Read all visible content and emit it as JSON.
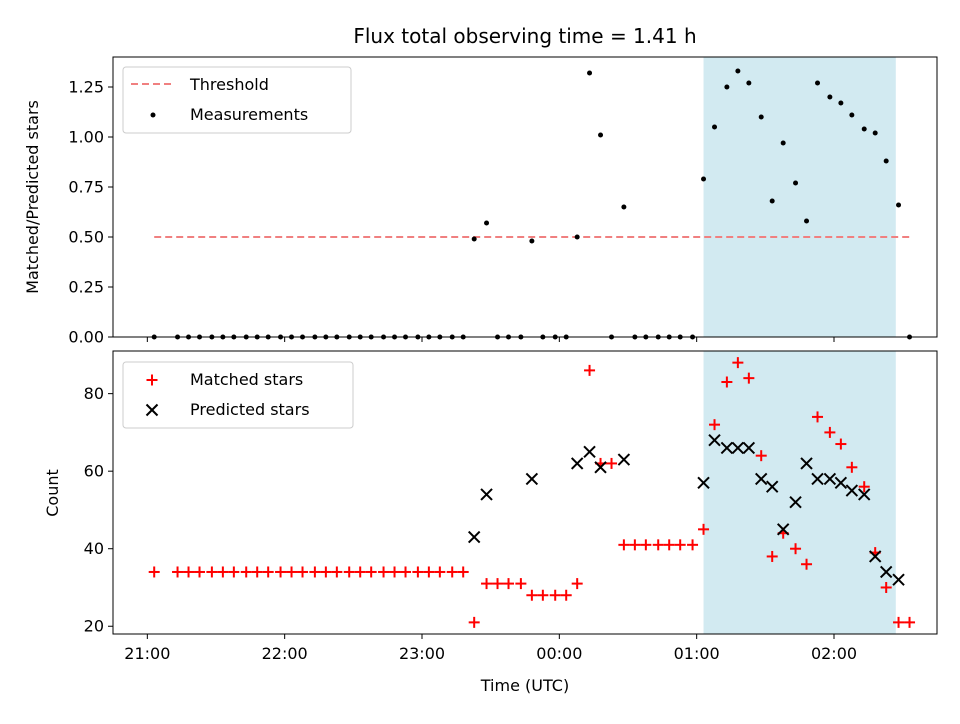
{
  "title": "Flux total observing time = 1.41 h",
  "xlabel": "Time (UTC)",
  "x_tick_labels": [
    "21:00",
    "22:00",
    "23:00",
    "00:00",
    "01:00",
    "02:00"
  ],
  "colors": {
    "threshold": "#f08080",
    "measurement": "#000000",
    "matched": "#ff0000",
    "predicted": "#000000",
    "span": "#add8e6"
  },
  "chart_data": [
    {
      "type": "scatter",
      "panel": "top",
      "ylabel": "Matched/Predicted stars",
      "ylim": [
        0,
        1.4
      ],
      "y_tick_labels": [
        "0.00",
        "0.25",
        "0.50",
        "0.75",
        "1.00",
        "1.25"
      ],
      "x_unit": "hours since 21:00 UTC",
      "xlim": [
        -0.25,
        5.75
      ],
      "shaded_span": [
        4.05,
        5.45
      ],
      "threshold": {
        "name": "Threshold",
        "y": 0.5,
        "x_range": [
          0.05,
          5.55
        ]
      },
      "series": [
        {
          "name": "Measurements",
          "x": [
            0.05,
            0.22,
            0.3,
            0.38,
            0.47,
            0.55,
            0.63,
            0.72,
            0.8,
            0.88,
            0.97,
            1.05,
            1.13,
            1.22,
            1.3,
            1.38,
            1.47,
            1.55,
            1.63,
            1.72,
            1.8,
            1.88,
            1.97,
            2.05,
            2.13,
            2.22,
            2.3,
            2.38,
            2.47,
            2.55,
            2.63,
            2.72,
            2.8,
            2.88,
            2.97,
            3.05,
            3.13,
            3.22,
            3.3,
            3.38,
            3.47,
            3.55,
            3.63,
            3.72,
            3.8,
            3.88,
            3.97,
            4.05,
            4.13,
            4.22,
            4.3,
            4.38,
            4.47,
            4.55,
            4.63,
            4.72,
            4.8,
            4.88,
            4.97,
            5.05,
            5.13,
            5.22,
            5.3,
            5.38,
            5.47,
            5.55
          ],
          "y": [
            0,
            0,
            0,
            0,
            0,
            0,
            0,
            0,
            0,
            0,
            0,
            0,
            0,
            0,
            0,
            0,
            0,
            0,
            0,
            0,
            0,
            0,
            0,
            0,
            0,
            0,
            0,
            0.49,
            0.57,
            0,
            0,
            0,
            0.48,
            0,
            0,
            0,
            0.5,
            1.32,
            1.01,
            0,
            0.65,
            0,
            0,
            0,
            0,
            0,
            0,
            0.79,
            1.05,
            1.25,
            1.33,
            1.27,
            1.1,
            0.68,
            0.97,
            0.77,
            0.58,
            1.27,
            1.2,
            1.17,
            1.11,
            1.04,
            1.02,
            0.88,
            0.66,
            0
          ]
        }
      ]
    },
    {
      "type": "scatter",
      "panel": "bottom",
      "ylabel": "Count",
      "ylim": [
        18,
        91
      ],
      "y_tick_labels": [
        "20",
        "40",
        "60",
        "80"
      ],
      "x_unit": "hours since 21:00 UTC",
      "xlim": [
        -0.25,
        5.75
      ],
      "shaded_span": [
        4.05,
        5.45
      ],
      "series": [
        {
          "name": "Matched stars",
          "x": [
            0.05,
            0.22,
            0.3,
            0.38,
            0.47,
            0.55,
            0.63,
            0.72,
            0.8,
            0.88,
            0.97,
            1.05,
            1.13,
            1.22,
            1.3,
            1.38,
            1.47,
            1.55,
            1.63,
            1.72,
            1.8,
            1.88,
            1.97,
            2.05,
            2.13,
            2.22,
            2.3,
            2.38,
            2.47,
            2.55,
            2.63,
            2.72,
            2.8,
            2.88,
            2.97,
            3.05,
            3.13,
            3.22,
            3.3,
            3.38,
            3.47,
            3.55,
            3.63,
            3.72,
            3.8,
            3.88,
            3.97,
            4.05,
            4.13,
            4.22,
            4.3,
            4.38,
            4.47,
            4.55,
            4.63,
            4.72,
            4.8,
            4.88,
            4.97,
            5.05,
            5.13,
            5.22,
            5.3,
            5.38,
            5.47,
            5.55
          ],
          "y": [
            34,
            34,
            34,
            34,
            34,
            34,
            34,
            34,
            34,
            34,
            34,
            34,
            34,
            34,
            34,
            34,
            34,
            34,
            34,
            34,
            34,
            34,
            34,
            34,
            34,
            34,
            34,
            21,
            31,
            31,
            31,
            31,
            28,
            28,
            28,
            28,
            31,
            86,
            62,
            62,
            41,
            41,
            41,
            41,
            41,
            41,
            41,
            45,
            72,
            83,
            88,
            84,
            64,
            38,
            44,
            40,
            36,
            74,
            70,
            67,
            61,
            56,
            39,
            30,
            21,
            21
          ]
        },
        {
          "name": "Predicted stars",
          "x": [
            2.38,
            2.47,
            2.8,
            3.13,
            3.22,
            3.3,
            3.47,
            4.05,
            4.13,
            4.22,
            4.3,
            4.38,
            4.47,
            4.55,
            4.63,
            4.72,
            4.8,
            4.88,
            4.97,
            5.05,
            5.13,
            5.22,
            5.3,
            5.38,
            5.47
          ],
          "y": [
            43,
            54,
            58,
            62,
            65,
            61,
            63,
            57,
            68,
            66,
            66,
            66,
            58,
            56,
            45,
            52,
            62,
            58,
            58,
            57,
            55,
            54,
            38,
            34,
            32
          ]
        }
      ]
    }
  ]
}
